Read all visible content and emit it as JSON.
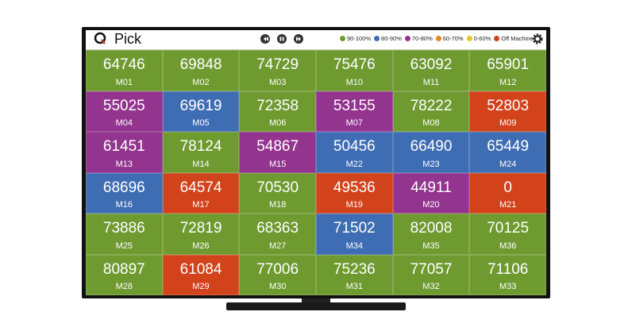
{
  "header": {
    "title": "Pick",
    "legend": [
      {
        "label": "90-100%",
        "color": "#6e9a30"
      },
      {
        "label": "80-90%",
        "color": "#3f6db3"
      },
      {
        "label": "70-80%",
        "color": "#93348e"
      },
      {
        "label": "60-70%",
        "color": "#e08a1e"
      },
      {
        "label": "0-60%",
        "color": "#e2c81f"
      },
      {
        "label": "Off Machine",
        "color": "#d2421b"
      }
    ]
  },
  "tiles": [
    [
      {
        "value": 64746,
        "label": "M01",
        "color": "#6e9a30"
      },
      {
        "value": 69848,
        "label": "M02",
        "color": "#6e9a30"
      },
      {
        "value": 74729,
        "label": "M03",
        "color": "#6e9a30"
      },
      {
        "value": 75476,
        "label": "M10",
        "color": "#6e9a30"
      },
      {
        "value": 63092,
        "label": "M11",
        "color": "#6e9a30"
      },
      {
        "value": 65901,
        "label": "M12",
        "color": "#6e9a30"
      }
    ],
    [
      {
        "value": 55025,
        "label": "M04",
        "color": "#93348e"
      },
      {
        "value": 69619,
        "label": "M05",
        "color": "#3f6db3"
      },
      {
        "value": 72358,
        "label": "M06",
        "color": "#6e9a30"
      },
      {
        "value": 53155,
        "label": "M07",
        "color": "#93348e"
      },
      {
        "value": 78222,
        "label": "M08",
        "color": "#6e9a30"
      },
      {
        "value": 52803,
        "label": "M09",
        "color": "#d2421b"
      }
    ],
    [
      {
        "value": 61451,
        "label": "M13",
        "color": "#93348e"
      },
      {
        "value": 78124,
        "label": "M14",
        "color": "#6e9a30"
      },
      {
        "value": 54867,
        "label": "M15",
        "color": "#93348e"
      },
      {
        "value": 50456,
        "label": "M22",
        "color": "#3f6db3"
      },
      {
        "value": 66490,
        "label": "M23",
        "color": "#3f6db3"
      },
      {
        "value": 65449,
        "label": "M24",
        "color": "#3f6db3"
      }
    ],
    [
      {
        "value": 68696,
        "label": "M16",
        "color": "#3f6db3"
      },
      {
        "value": 64574,
        "label": "M17",
        "color": "#d2421b"
      },
      {
        "value": 70530,
        "label": "M18",
        "color": "#6e9a30"
      },
      {
        "value": 49536,
        "label": "M19",
        "color": "#d2421b"
      },
      {
        "value": 44911,
        "label": "M20",
        "color": "#93348e"
      },
      {
        "value": 0,
        "label": "M21",
        "color": "#d2421b"
      }
    ],
    [
      {
        "value": 73886,
        "label": "M25",
        "color": "#6e9a30"
      },
      {
        "value": 72819,
        "label": "M26",
        "color": "#6e9a30"
      },
      {
        "value": 68363,
        "label": "M27",
        "color": "#6e9a30"
      },
      {
        "value": 71502,
        "label": "M34",
        "color": "#3f6db3"
      },
      {
        "value": 82008,
        "label": "M35",
        "color": "#6e9a30"
      },
      {
        "value": 70125,
        "label": "M36",
        "color": "#6e9a30"
      }
    ],
    [
      {
        "value": 80897,
        "label": "M28",
        "color": "#6e9a30"
      },
      {
        "value": 61084,
        "label": "M29",
        "color": "#d2421b"
      },
      {
        "value": 77006,
        "label": "M30",
        "color": "#6e9a30"
      },
      {
        "value": 75236,
        "label": "M31",
        "color": "#6e9a30"
      },
      {
        "value": 77057,
        "label": "M32",
        "color": "#6e9a30"
      },
      {
        "value": 71106,
        "label": "M33",
        "color": "#6e9a30"
      }
    ]
  ]
}
